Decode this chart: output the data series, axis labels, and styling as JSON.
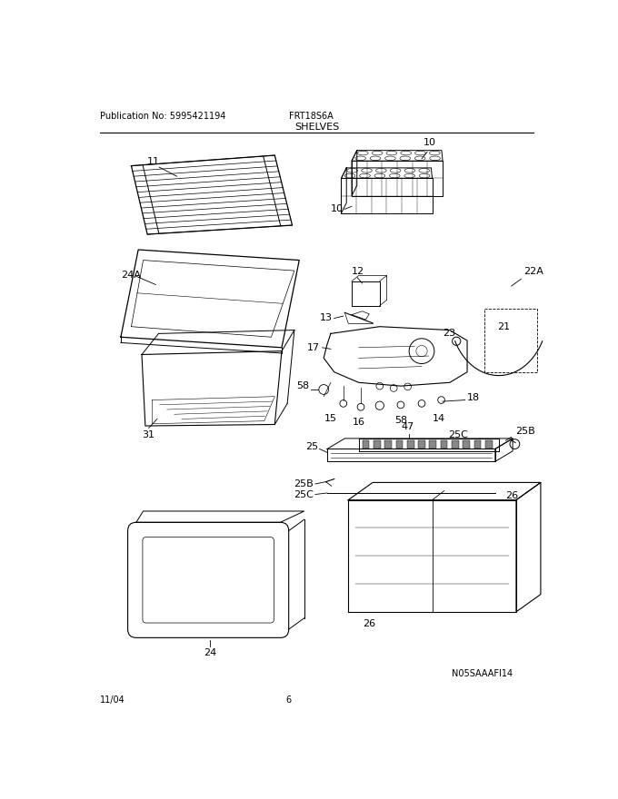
{
  "title": "FRT18S6A",
  "section": "SHELVES",
  "pub_no": "Publication No: 5995421194",
  "date": "11/04",
  "page": "6",
  "watermark": "N05SAAAFI14",
  "background": "#ffffff",
  "text_color": "#000000",
  "fig_width": 6.8,
  "fig_height": 8.8,
  "dpi": 100
}
